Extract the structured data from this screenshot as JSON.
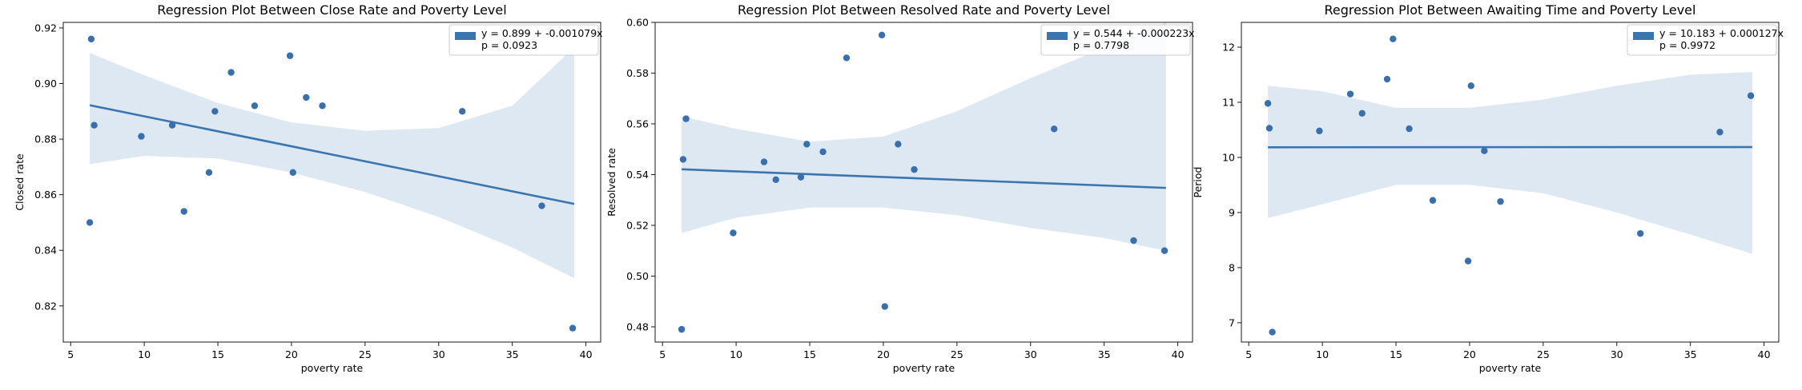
{
  "chart_data": [
    {
      "type": "scatter",
      "title": "Regression Plot Between Close Rate and Poverty Level",
      "xlabel": "poverty rate",
      "ylabel": "Closed rate",
      "xlim": [
        4.5,
        41.0
      ],
      "ylim": [
        0.807,
        0.922
      ],
      "xticks": [
        5,
        10,
        15,
        20,
        25,
        30,
        35,
        40
      ],
      "yticks": [
        0.82,
        0.84,
        0.86,
        0.88,
        0.9,
        0.92
      ],
      "ytick_labels": [
        "0.82",
        "0.84",
        "0.86",
        "0.88",
        "0.90",
        "0.92"
      ],
      "legend_position": "top-right",
      "legend": [
        "y = 0.899 + -0.001079x",
        "p = 0.0923"
      ],
      "regression": {
        "intercept": 0.899,
        "slope": -0.001079,
        "x_range": [
          6.3,
          39.2
        ]
      },
      "ci_band": {
        "x": [
          6.3,
          10,
          15,
          20,
          25,
          30,
          35,
          39.2
        ],
        "lower": [
          0.871,
          0.874,
          0.873,
          0.868,
          0.861,
          0.852,
          0.841,
          0.83
        ],
        "upper": [
          0.911,
          0.903,
          0.893,
          0.886,
          0.883,
          0.884,
          0.892,
          0.913
        ]
      },
      "points": {
        "x": [
          6.3,
          6.4,
          6.6,
          9.8,
          11.9,
          12.7,
          14.4,
          14.8,
          15.9,
          17.5,
          19.9,
          20.1,
          21.0,
          22.1,
          31.6,
          37.0,
          39.1
        ],
        "y": [
          0.85,
          0.916,
          0.885,
          0.881,
          0.885,
          0.854,
          0.868,
          0.89,
          0.904,
          0.892,
          0.91,
          0.868,
          0.895,
          0.892,
          0.89,
          0.856,
          0.812
        ]
      }
    },
    {
      "type": "scatter",
      "title": "Regression Plot Between Resolved Rate and Poverty Level",
      "xlabel": "poverty rate",
      "ylabel": "Resolved rate",
      "xlim": [
        4.5,
        41.0
      ],
      "ylim": [
        0.474,
        0.6
      ],
      "xticks": [
        5,
        10,
        15,
        20,
        25,
        30,
        35,
        40
      ],
      "yticks": [
        0.48,
        0.5,
        0.52,
        0.54,
        0.56,
        0.58,
        0.6
      ],
      "ytick_labels": [
        "0.48",
        "0.50",
        "0.52",
        "0.54",
        "0.56",
        "0.58",
        "0.60"
      ],
      "legend_position": "top-right",
      "legend": [
        "y = 0.544 + -0.000223x",
        "p = 0.7798"
      ],
      "regression": {
        "intercept": 0.5435,
        "slope": -0.000223,
        "x_range": [
          6.3,
          39.2
        ]
      },
      "ci_band": {
        "x": [
          6.3,
          10,
          15,
          20,
          25,
          30,
          35,
          39.2
        ],
        "lower": [
          0.517,
          0.523,
          0.527,
          0.527,
          0.524,
          0.519,
          0.515,
          0.51
        ],
        "upper": [
          0.563,
          0.558,
          0.553,
          0.555,
          0.565,
          0.578,
          0.59,
          0.6
        ]
      },
      "points": {
        "x": [
          6.3,
          6.4,
          6.6,
          9.8,
          11.9,
          12.7,
          14.4,
          14.8,
          15.9,
          17.5,
          19.9,
          20.1,
          21.0,
          22.1,
          31.6,
          37.0,
          39.1
        ],
        "y": [
          0.479,
          0.546,
          0.562,
          0.517,
          0.545,
          0.538,
          0.539,
          0.552,
          0.549,
          0.586,
          0.595,
          0.488,
          0.552,
          0.542,
          0.558,
          0.514,
          0.51
        ]
      }
    },
    {
      "type": "scatter",
      "title": "Regression Plot Between Awaiting Time and Poverty Level",
      "xlabel": "poverty rate",
      "ylabel": "Period",
      "xlim": [
        4.5,
        41.0
      ],
      "ylim": [
        6.65,
        12.45
      ],
      "xticks": [
        5,
        10,
        15,
        20,
        25,
        30,
        35,
        40
      ],
      "yticks": [
        7,
        8,
        9,
        10,
        11,
        12
      ],
      "ytick_labels": [
        "7",
        "8",
        "9",
        "10",
        "11",
        "12"
      ],
      "legend_position": "top-right",
      "legend": [
        "y = 10.183 + 0.000127x",
        "p = 0.9972"
      ],
      "regression": {
        "intercept": 10.183,
        "slope": 0.000127,
        "x_range": [
          6.3,
          39.2
        ]
      },
      "ci_band": {
        "x": [
          6.3,
          10,
          15,
          20,
          25,
          30,
          35,
          39.2
        ],
        "lower": [
          8.9,
          9.15,
          9.5,
          9.5,
          9.35,
          9.0,
          8.6,
          8.25
        ],
        "upper": [
          11.3,
          11.2,
          10.9,
          10.9,
          11.05,
          11.3,
          11.5,
          11.55
        ]
      },
      "points": {
        "x": [
          6.3,
          6.4,
          6.6,
          9.8,
          11.9,
          12.7,
          14.4,
          14.8,
          15.9,
          17.5,
          19.9,
          20.1,
          21.0,
          22.1,
          31.6,
          37.0,
          39.1
        ],
        "y": [
          10.98,
          10.53,
          6.83,
          10.48,
          11.15,
          10.8,
          11.42,
          12.15,
          10.52,
          9.22,
          8.12,
          11.3,
          10.12,
          9.2,
          8.62,
          10.46,
          11.12
        ]
      }
    }
  ],
  "colors": {
    "points": "#3a6fae",
    "line": "#3b75b0",
    "band": "#dde8f3",
    "legend_patch": "#3b75b0"
  }
}
